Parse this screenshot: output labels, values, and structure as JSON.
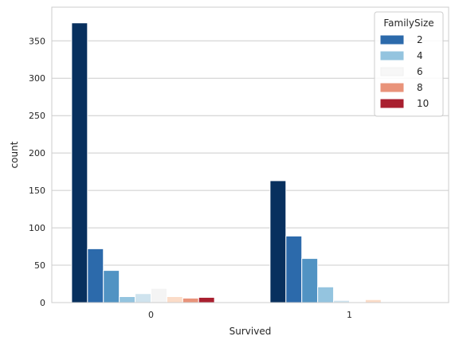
{
  "chart_data": {
    "type": "bar",
    "categories": [
      "0",
      "1"
    ],
    "xlabel": "Survived",
    "ylabel": "count",
    "ylim": [
      0,
      395
    ],
    "yticks": [
      0,
      50,
      100,
      150,
      200,
      250,
      300,
      350
    ],
    "grid": true,
    "legend": {
      "title": "FamilySize",
      "placement": "top-right",
      "entries": [
        {
          "label": "2",
          "color": "#2c6aab"
        },
        {
          "label": "4",
          "color": "#94c4df"
        },
        {
          "label": "6",
          "color": "#f7f7f7"
        },
        {
          "label": "8",
          "color": "#e9937a"
        },
        {
          "label": "10",
          "color": "#a91f2f"
        }
      ]
    },
    "series": [
      {
        "color": "#08305e",
        "values": [
          374,
          163
        ]
      },
      {
        "color": "#2c6aab",
        "values": [
          72,
          89
        ]
      },
      {
        "color": "#5193c3",
        "values": [
          43,
          59
        ]
      },
      {
        "color": "#94c4df",
        "values": [
          8,
          21
        ]
      },
      {
        "color": "#cfe3ee",
        "values": [
          12,
          3
        ]
      },
      {
        "color": "#f4f4f4",
        "values": [
          19,
          1
        ]
      },
      {
        "color": "#fbdcc8",
        "values": [
          8,
          4
        ]
      },
      {
        "color": "#e9937a",
        "values": [
          6,
          0
        ]
      },
      {
        "color": "#a91f2f",
        "values": [
          7,
          0
        ]
      },
      {
        "color": "#67001f",
        "values": [
          0,
          0
        ]
      }
    ]
  }
}
